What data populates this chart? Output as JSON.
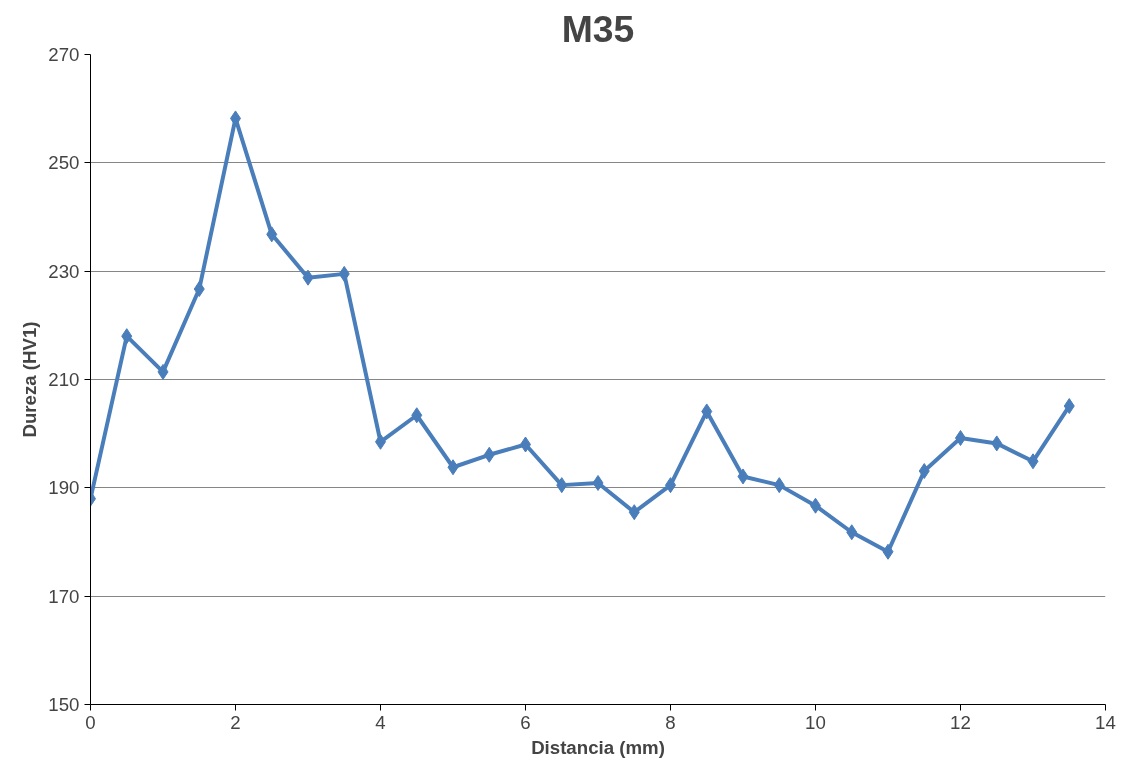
{
  "chart_data": {
    "type": "line",
    "title": "M35",
    "xlabel": "Distancia (mm)",
    "ylabel": "Dureza (HV1)",
    "x": [
      0,
      0.5,
      1,
      1.5,
      2,
      2.5,
      3,
      3.5,
      4,
      4.5,
      5,
      5.5,
      6,
      6.5,
      7,
      7.5,
      8,
      8.5,
      9,
      9.5,
      10,
      10.5,
      11,
      11.5,
      12,
      12.5,
      13,
      13.5
    ],
    "series": [
      {
        "color": "#4a7ebb",
        "values": [
          188,
          218,
          211.4,
          226.7,
          258.2,
          236.8,
          228.8,
          229.5,
          198.5,
          203.4,
          193.8,
          196.1,
          198,
          190.5,
          190.9,
          185.5,
          190.5,
          204.1,
          192.1,
          190.5,
          186.7,
          181.8,
          178.2,
          193.1,
          199.2,
          198.2,
          194.9,
          205.1
        ]
      }
    ],
    "xlim": [
      0,
      14
    ],
    "xticks": [
      0,
      2,
      4,
      6,
      8,
      10,
      12,
      14
    ],
    "ylim": [
      150,
      270
    ],
    "yticks": [
      150,
      170,
      190,
      210,
      230,
      250,
      270
    ],
    "grid": "y",
    "marker": "diamond",
    "line_style": "solid"
  }
}
